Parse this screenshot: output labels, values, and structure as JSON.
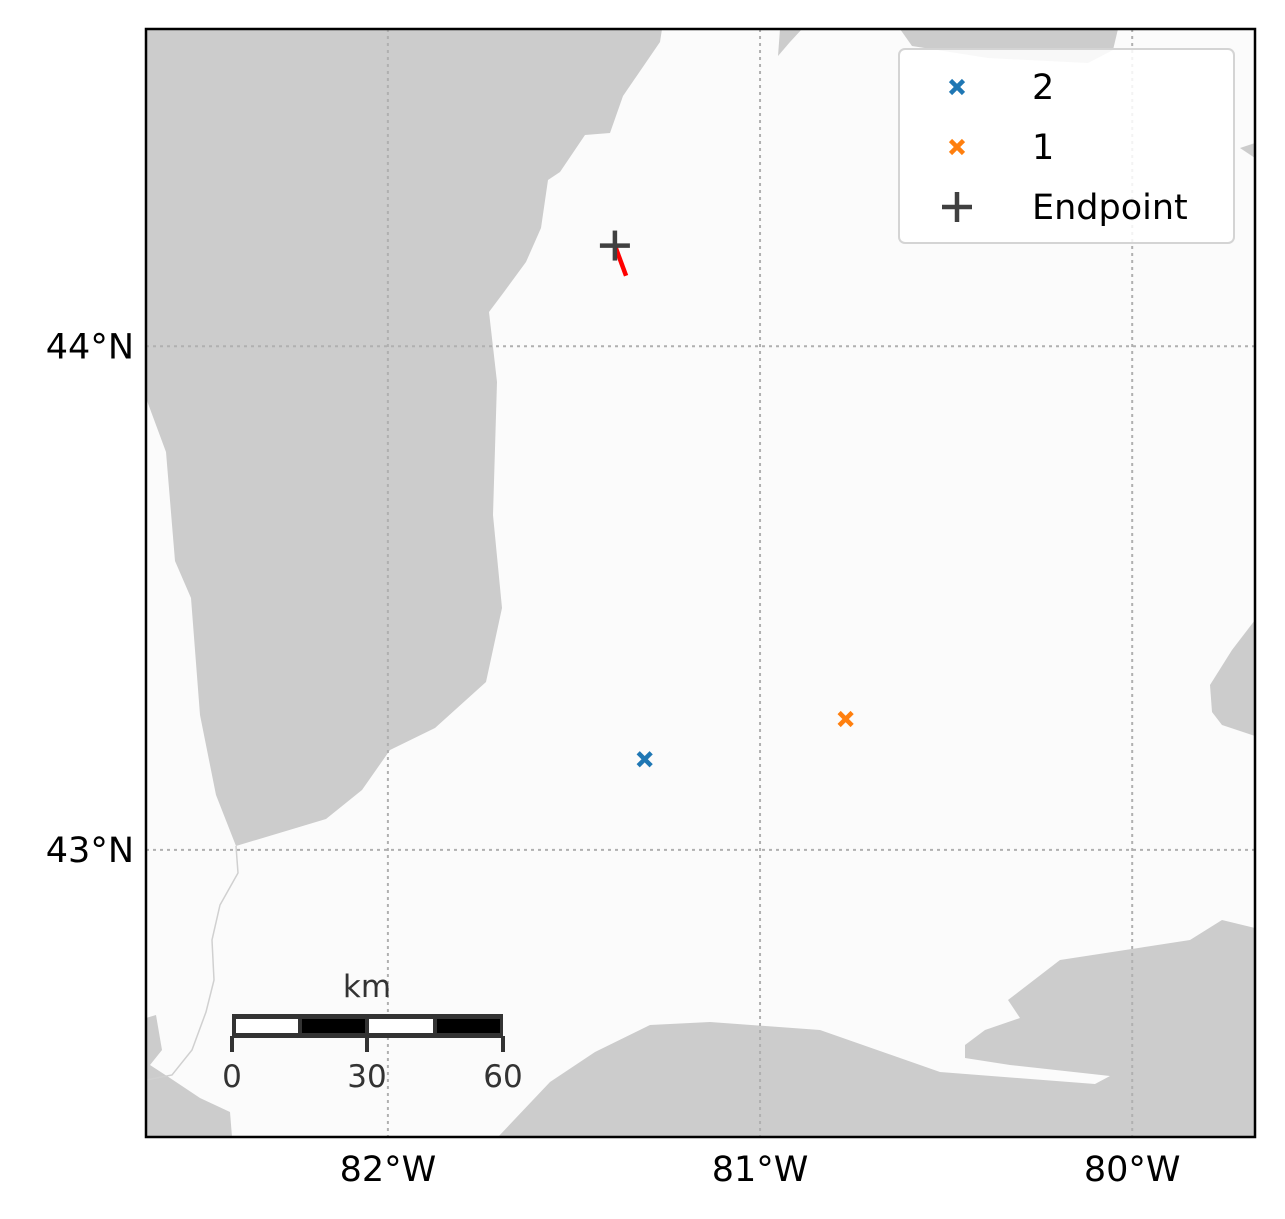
{
  "chart_data": {
    "type": "scatter",
    "xlim": [
      -82.65,
      -79.67
    ],
    "ylim": [
      42.43,
      44.63
    ],
    "x_ticks": [
      {
        "value": -82,
        "label": "82°W"
      },
      {
        "value": -81,
        "label": "81°W"
      },
      {
        "value": -80,
        "label": "80°W"
      }
    ],
    "y_ticks": [
      {
        "value": 44,
        "label": "44°N"
      },
      {
        "value": 43,
        "label": "43°N"
      }
    ],
    "grid": true,
    "legend_position": "top-right",
    "series": [
      {
        "name": "2",
        "marker": "x",
        "color": "#1f77b4",
        "points": [
          {
            "lon": -81.31,
            "lat": 43.18
          }
        ]
      },
      {
        "name": "1",
        "marker": "x",
        "color": "#ff7f0e",
        "points": [
          {
            "lon": -80.77,
            "lat": 43.26
          }
        ]
      },
      {
        "name": "Endpoint",
        "marker": "plus",
        "color": "#404040",
        "points": [
          {
            "lon": -81.39,
            "lat": 44.2
          }
        ]
      }
    ],
    "track": {
      "color": "#ff0000",
      "points": [
        {
          "lon": -81.39,
          "lat": 44.2
        },
        {
          "lon": -81.36,
          "lat": 44.14
        }
      ]
    },
    "colors": {
      "land": "#cccccc",
      "water": "#fbfbfb",
      "grid": "#b0b0b0"
    },
    "scale_bar": {
      "unit": "km",
      "labels": [
        "0",
        "30",
        "60"
      ]
    }
  }
}
